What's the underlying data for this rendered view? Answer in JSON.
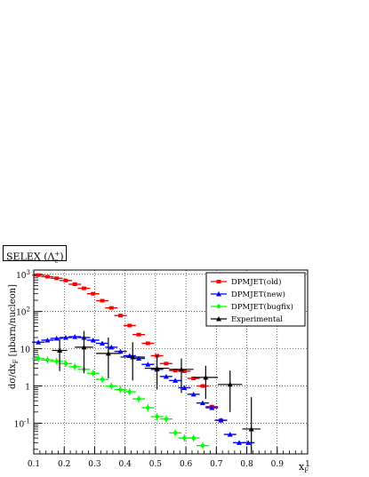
{
  "colors": {
    "old": "#ff0000",
    "new": "#0000ff",
    "bugfix": "#00ff00",
    "experimental": "#000000"
  },
  "chart_data": {
    "type": "scatter",
    "title": "SELEX (Λc+)",
    "title_main": "SELEX (Λ",
    "title_sub": "c",
    "title_sup": "+",
    "title_end": ")",
    "xlabel_main": "x",
    "xlabel_sub": "F",
    "ylabel": "dσ/dxF [μbarn/nucleon]",
    "ylabel_parts": [
      "dσ/dx",
      "F",
      " [μbarn/nucleon]"
    ],
    "xlim": [
      0.1,
      1.0
    ],
    "ylim": [
      0.015,
      1300
    ],
    "yscale": "log",
    "grid": true,
    "legend_position": "top-right",
    "x_ticks": [
      0.1,
      0.2,
      0.3,
      0.4,
      0.5,
      0.6,
      0.7,
      0.8,
      0.9,
      1.0
    ],
    "x_tick_labels": [
      "0.1",
      "0.2",
      "0.3",
      "0.4",
      "0.5",
      "0.6",
      "0.7",
      "0.8",
      "0.9",
      "1"
    ],
    "y_ticks": [
      0.1,
      1,
      10,
      100,
      1000
    ],
    "y_tick_labels": [
      {
        "base": "10",
        "exp": "-1"
      },
      {
        "base": "1",
        "exp": ""
      },
      {
        "base": "10",
        "exp": ""
      },
      {
        "base": "10",
        "exp": "2"
      },
      {
        "base": "10",
        "exp": "3"
      }
    ],
    "series": [
      {
        "name": "DPMJET(old)",
        "key": "old",
        "marker": "square",
        "x": [
          0.115,
          0.145,
          0.175,
          0.205,
          0.235,
          0.265,
          0.295,
          0.325,
          0.355,
          0.385,
          0.415,
          0.445,
          0.475,
          0.505,
          0.535,
          0.565,
          0.595,
          0.625,
          0.655,
          0.685,
          0.715
        ],
        "y": [
          950,
          860,
          780,
          680,
          540,
          420,
          300,
          195,
          125,
          78,
          42,
          24,
          14,
          6.5,
          4.0,
          2.6,
          2.5,
          1.6,
          1.0,
          0.28,
          0.12
        ]
      },
      {
        "name": "DPMJET(new)",
        "key": "new",
        "marker": "triangle",
        "x": [
          0.115,
          0.145,
          0.175,
          0.205,
          0.235,
          0.265,
          0.295,
          0.325,
          0.355,
          0.385,
          0.415,
          0.445,
          0.475,
          0.505,
          0.535,
          0.565,
          0.595,
          0.625,
          0.655,
          0.685,
          0.715,
          0.745,
          0.775,
          0.805
        ],
        "y": [
          15,
          17,
          19,
          20,
          21,
          20,
          17,
          14,
          11,
          8.5,
          6.5,
          5.5,
          3.8,
          2.8,
          1.8,
          1.4,
          0.9,
          0.6,
          0.35,
          0.26,
          0.12,
          0.05,
          0.03,
          0.03
        ]
      },
      {
        "name": "DPMJET(bugfix)",
        "key": "bugfix",
        "marker": "circle",
        "x": [
          0.115,
          0.145,
          0.175,
          0.205,
          0.235,
          0.265,
          0.295,
          0.325,
          0.355,
          0.385,
          0.415,
          0.445,
          0.475,
          0.505,
          0.535,
          0.565,
          0.595,
          0.625,
          0.655
        ],
        "y": [
          5.5,
          5.0,
          4.6,
          4.0,
          3.3,
          2.8,
          2.2,
          1.5,
          1.0,
          0.8,
          0.7,
          0.45,
          0.26,
          0.15,
          0.13,
          0.055,
          0.04,
          0.04,
          0.025
        ]
      },
      {
        "name": "Experimental",
        "key": "experimental",
        "marker": "triangle",
        "x": [
          0.185,
          0.265,
          0.345,
          0.425,
          0.505,
          0.585,
          0.665,
          0.745,
          0.815
        ],
        "xerr": [
          0.025,
          0.03,
          0.04,
          0.04,
          0.04,
          0.04,
          0.04,
          0.04,
          0.03
        ],
        "y": [
          9.0,
          11.0,
          7.5,
          6.0,
          3.0,
          2.8,
          1.7,
          1.1,
          0.07
        ],
        "ylow": [
          2.5,
          2.2,
          1.6,
          1.4,
          0.8,
          0.65,
          0.45,
          0.2,
          0.015
        ],
        "yhigh": [
          18,
          30,
          20,
          15,
          6.5,
          5.5,
          3.5,
          2.6,
          0.5
        ]
      }
    ]
  }
}
